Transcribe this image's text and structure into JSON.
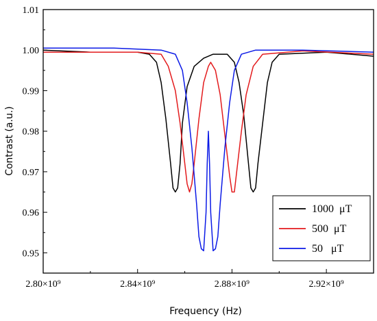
{
  "chart_data": {
    "type": "line",
    "title": "",
    "xlabel": "Frequency (Hz)",
    "ylabel": "Contrast (a.u.)",
    "xlim": [
      2800000000.0,
      2940000000.0
    ],
    "ylim": [
      0.945,
      1.01
    ],
    "x_ticks": [
      2800000000.0,
      2840000000.0,
      2880000000.0,
      2920000000.0
    ],
    "x_tick_labels": [
      "2.80×10⁹",
      "2.84×10⁹",
      "2.88×10⁹",
      "2.92×10⁹"
    ],
    "y_ticks": [
      0.95,
      0.96,
      0.97,
      0.98,
      0.99,
      1.0,
      1.01
    ],
    "y_tick_labels": [
      "0.95",
      "0.96",
      "0.97",
      "0.98",
      "0.99",
      "1.00",
      "1.01"
    ],
    "grid": false,
    "legend_position": "bottom-right",
    "series": [
      {
        "name": "1000  μT",
        "color": "#000000",
        "points": [
          [
            2800000000.0,
            1.0
          ],
          [
            2820000000.0,
            0.9995
          ],
          [
            2840000000.0,
            0.9995
          ],
          [
            2845000000.0,
            0.999
          ],
          [
            2848000000.0,
            0.997
          ],
          [
            2850000000.0,
            0.992
          ],
          [
            2852000000.0,
            0.983
          ],
          [
            2854000000.0,
            0.972
          ],
          [
            2855000000.0,
            0.966
          ],
          [
            2856000000.0,
            0.965
          ],
          [
            2857000000.0,
            0.966
          ],
          [
            2858000000.0,
            0.972
          ],
          [
            2859000000.0,
            0.982
          ],
          [
            2861000000.0,
            0.991
          ],
          [
            2864000000.0,
            0.996
          ],
          [
            2868000000.0,
            0.998
          ],
          [
            2872000000.0,
            0.999
          ],
          [
            2878000000.0,
            0.999
          ],
          [
            2881000000.0,
            0.997
          ],
          [
            2883000000.0,
            0.992
          ],
          [
            2885000000.0,
            0.984
          ],
          [
            2887000000.0,
            0.972
          ],
          [
            2888000000.0,
            0.966
          ],
          [
            2889000000.0,
            0.965
          ],
          [
            2890000000.0,
            0.966
          ],
          [
            2891000000.0,
            0.972
          ],
          [
            2893000000.0,
            0.982
          ],
          [
            2895000000.0,
            0.992
          ],
          [
            2897000000.0,
            0.997
          ],
          [
            2900000000.0,
            0.999
          ],
          [
            2920000000.0,
            0.9995
          ],
          [
            2940000000.0,
            0.9985
          ]
        ]
      },
      {
        "name": "500  μT",
        "color": "#e31a1c",
        "points": [
          [
            2800000000.0,
            0.9995
          ],
          [
            2840000000.0,
            0.9995
          ],
          [
            2850000000.0,
            0.999
          ],
          [
            2853000000.0,
            0.996
          ],
          [
            2856000000.0,
            0.99
          ],
          [
            2858000000.0,
            0.982
          ],
          [
            2860000000.0,
            0.972
          ],
          [
            2861000000.0,
            0.967
          ],
          [
            2862000000.0,
            0.965
          ],
          [
            2863000000.0,
            0.967
          ],
          [
            2864000000.0,
            0.972
          ],
          [
            2866000000.0,
            0.983
          ],
          [
            2868000000.0,
            0.992
          ],
          [
            2870000000.0,
            0.996
          ],
          [
            2871000000.0,
            0.997
          ],
          [
            2873000000.0,
            0.995
          ],
          [
            2875000000.0,
            0.989
          ],
          [
            2877000000.0,
            0.979
          ],
          [
            2879000000.0,
            0.969
          ],
          [
            2880000000.0,
            0.965
          ],
          [
            2881000000.0,
            0.965
          ],
          [
            2882000000.0,
            0.97
          ],
          [
            2884000000.0,
            0.98
          ],
          [
            2886000000.0,
            0.989
          ],
          [
            2889000000.0,
            0.996
          ],
          [
            2893000000.0,
            0.999
          ],
          [
            2910000000.0,
            0.9998
          ],
          [
            2940000000.0,
            0.999
          ]
        ]
      },
      {
        "name": "50   μT",
        "color": "#0b1ae6",
        "points": [
          [
            2800000000.0,
            1.0005
          ],
          [
            2830000000.0,
            1.0005
          ],
          [
            2850000000.0,
            1.0
          ],
          [
            2856000000.0,
            0.999
          ],
          [
            2859000000.0,
            0.995
          ],
          [
            2861000000.0,
            0.987
          ],
          [
            2863000000.0,
            0.976
          ],
          [
            2865000000.0,
            0.962
          ],
          [
            2866000000.0,
            0.954
          ],
          [
            2867000000.0,
            0.951
          ],
          [
            2868000000.0,
            0.9505
          ],
          [
            2869000000.0,
            0.96
          ],
          [
            2869500000.0,
            0.972
          ],
          [
            2870000000.0,
            0.98
          ],
          [
            2870500000.0,
            0.972
          ],
          [
            2871000000.0,
            0.96
          ],
          [
            2872000000.0,
            0.9505
          ],
          [
            2873000000.0,
            0.951
          ],
          [
            2874000000.0,
            0.954
          ],
          [
            2875000000.0,
            0.962
          ],
          [
            2877000000.0,
            0.976
          ],
          [
            2879000000.0,
            0.987
          ],
          [
            2881000000.0,
            0.995
          ],
          [
            2884000000.0,
            0.999
          ],
          [
            2890000000.0,
            1.0
          ],
          [
            2910000000.0,
            1.0
          ],
          [
            2940000000.0,
            0.9995
          ]
        ]
      }
    ]
  }
}
